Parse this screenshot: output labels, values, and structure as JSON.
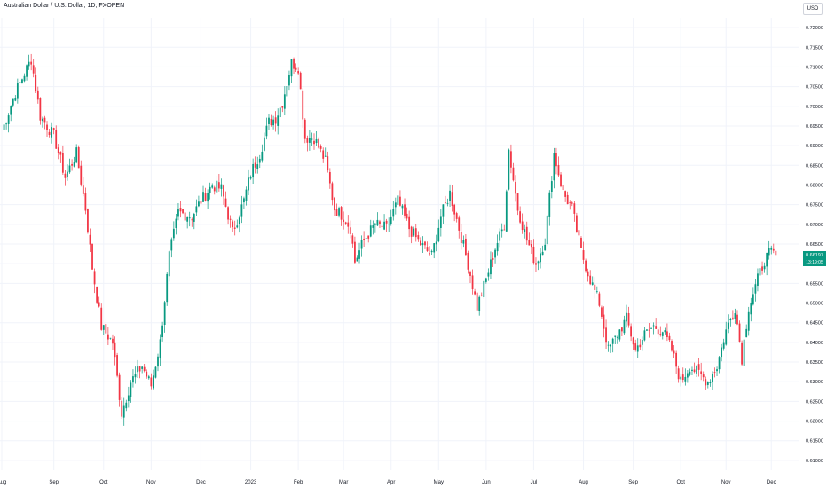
{
  "title": "Australian Dollar / U.S. Dollar, 1D, FXOPEN",
  "currency": "USD",
  "colors": {
    "up": "#089981",
    "down": "#f23645",
    "grid": "#f0f3fa",
    "axis_text": "#131722",
    "last_line": "#089981"
  },
  "last_price": {
    "value": 0.66197,
    "label": "0.66197",
    "countdown": "13:19:05"
  },
  "chart_data": {
    "type": "candlestick",
    "title": "Australian Dollar / U.S. Dollar, 1D, FXOPEN",
    "ylim": [
      0.6075,
      0.7225
    ],
    "y_ticks": [
      "0.72000",
      "0.71500",
      "0.71000",
      "0.70500",
      "0.70000",
      "0.69500",
      "0.69000",
      "0.68500",
      "0.68000",
      "0.67500",
      "0.67000",
      "0.66500",
      "0.66000",
      "0.65500",
      "0.65000",
      "0.64500",
      "0.64000",
      "0.63500",
      "0.63000",
      "0.62500",
      "0.62000",
      "0.61500",
      "0.61000"
    ],
    "x_labels": [
      "Aug",
      "Sep",
      "Oct",
      "Nov",
      "Dec",
      "2023",
      "Feb",
      "Mar",
      "Apr",
      "May",
      "Jun",
      "Jul",
      "Aug",
      "Sep",
      "Oct",
      "Nov",
      "Dec"
    ],
    "x_label_positions": [
      0,
      23,
      45,
      66,
      88,
      110,
      131,
      151,
      172,
      193,
      214,
      235,
      257,
      279,
      300,
      320,
      340
    ],
    "x_range": [
      0,
      345
    ],
    "price_path": [
      [
        0,
        0.6935
      ],
      [
        6,
        0.7035
      ],
      [
        13,
        0.712
      ],
      [
        17,
        0.6975
      ],
      [
        23,
        0.6925
      ],
      [
        28,
        0.682
      ],
      [
        33,
        0.688
      ],
      [
        37,
        0.674
      ],
      [
        40,
        0.659
      ],
      [
        44,
        0.644
      ],
      [
        49,
        0.64
      ],
      [
        53,
        0.622
      ],
      [
        57,
        0.63
      ],
      [
        62,
        0.634
      ],
      [
        66,
        0.629
      ],
      [
        70,
        0.64
      ],
      [
        74,
        0.662
      ],
      [
        78,
        0.673
      ],
      [
        84,
        0.672
      ],
      [
        88,
        0.676
      ],
      [
        93,
        0.68
      ],
      [
        97,
        0.679
      ],
      [
        102,
        0.668
      ],
      [
        107,
        0.676
      ],
      [
        110,
        0.683
      ],
      [
        114,
        0.688
      ],
      [
        118,
        0.696
      ],
      [
        121,
        0.697
      ],
      [
        124,
        0.701
      ],
      [
        128,
        0.711
      ],
      [
        131,
        0.71
      ],
      [
        134,
        0.692
      ],
      [
        138,
        0.692
      ],
      [
        143,
        0.686
      ],
      [
        147,
        0.674
      ],
      [
        151,
        0.672
      ],
      [
        154,
        0.669
      ],
      [
        156,
        0.6605
      ],
      [
        160,
        0.666
      ],
      [
        165,
        0.67
      ],
      [
        170,
        0.669
      ],
      [
        175,
        0.676
      ],
      [
        180,
        0.669
      ],
      [
        185,
        0.665
      ],
      [
        190,
        0.662
      ],
      [
        194,
        0.672
      ],
      [
        198,
        0.678
      ],
      [
        202,
        0.669
      ],
      [
        206,
        0.66
      ],
      [
        210,
        0.649
      ],
      [
        214,
        0.656
      ],
      [
        218,
        0.664
      ],
      [
        222,
        0.67
      ],
      [
        224,
        0.689
      ],
      [
        228,
        0.674
      ],
      [
        232,
        0.666
      ],
      [
        236,
        0.66
      ],
      [
        240,
        0.666
      ],
      [
        244,
        0.688
      ],
      [
        248,
        0.678
      ],
      [
        252,
        0.674
      ],
      [
        256,
        0.663
      ],
      [
        260,
        0.656
      ],
      [
        264,
        0.65
      ],
      [
        268,
        0.638
      ],
      [
        272,
        0.642
      ],
      [
        276,
        0.646
      ],
      [
        280,
        0.638
      ],
      [
        284,
        0.642
      ],
      [
        288,
        0.644
      ],
      [
        292,
        0.643
      ],
      [
        296,
        0.638
      ],
      [
        300,
        0.63
      ],
      [
        304,
        0.634
      ],
      [
        308,
        0.632
      ],
      [
        312,
        0.63
      ],
      [
        316,
        0.634
      ],
      [
        320,
        0.643
      ],
      [
        324,
        0.649
      ],
      [
        327,
        0.636
      ],
      [
        330,
        0.649
      ],
      [
        334,
        0.656
      ],
      [
        337,
        0.661
      ],
      [
        340,
        0.663
      ],
      [
        342,
        0.662
      ]
    ]
  }
}
